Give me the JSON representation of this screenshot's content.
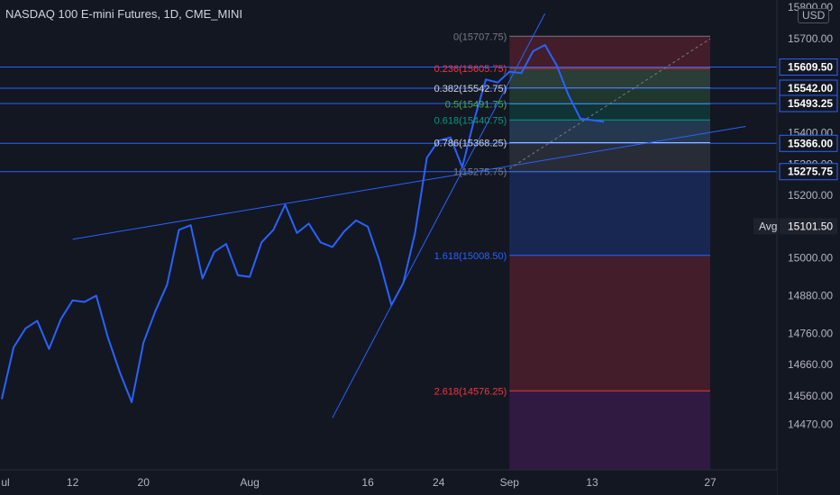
{
  "header": {
    "title": "NASDAQ 100 E-mini Futures, 1D, CME_MINI",
    "currency": "USD"
  },
  "chart_data": {
    "type": "line",
    "title": "NASDAQ 100 E-mini Futures, 1D, CME_MINI",
    "ylim": [
      14420,
      15800
    ],
    "y_ticks": [
      "15800.00",
      "15700.00",
      "15400.00",
      "15300.00",
      "15200.00",
      "15000.00",
      "14880.00",
      "14760.00",
      "14660.00",
      "14560.00",
      "14470.00"
    ],
    "x_ticks": [
      {
        "label": "ul",
        "i": 0
      },
      {
        "label": "12",
        "i": 6
      },
      {
        "label": "20",
        "i": 12
      },
      {
        "label": "Aug",
        "i": 21
      },
      {
        "label": "16",
        "i": 31
      },
      {
        "label": "24",
        "i": 37
      },
      {
        "label": "Sep",
        "i": 43
      },
      {
        "label": "13",
        "i": 50
      },
      {
        "label": "27",
        "i": 60
      }
    ],
    "x_range": [
      0,
      62
    ],
    "series": [
      {
        "name": "",
        "color": "#2962ff",
        "points": [
          [
            0,
            14550
          ],
          [
            1,
            14715
          ],
          [
            2,
            14775
          ],
          [
            3,
            14800
          ],
          [
            4,
            14710
          ],
          [
            5,
            14805
          ],
          [
            6,
            14865
          ],
          [
            7,
            14860
          ],
          [
            8,
            14880
          ],
          [
            9,
            14745
          ],
          [
            10,
            14635
          ],
          [
            11,
            14540
          ],
          [
            12,
            14730
          ],
          [
            13,
            14830
          ],
          [
            14,
            14915
          ],
          [
            15,
            15090
          ],
          [
            16,
            15105
          ],
          [
            17,
            14935
          ],
          [
            18,
            15020
          ],
          [
            19,
            15045
          ],
          [
            20,
            14945
          ],
          [
            21,
            14940
          ],
          [
            22,
            15050
          ],
          [
            23,
            15090
          ],
          [
            24,
            15170
          ],
          [
            25,
            15080
          ],
          [
            26,
            15110
          ],
          [
            27,
            15050
          ],
          [
            28,
            15035
          ],
          [
            29,
            15085
          ],
          [
            30,
            15120
          ],
          [
            31,
            15100
          ],
          [
            32,
            14990
          ],
          [
            33,
            14850
          ],
          [
            34,
            14920
          ],
          [
            35,
            15080
          ],
          [
            36,
            15320
          ],
          [
            37,
            15375
          ],
          [
            38,
            15385
          ],
          [
            39,
            15290
          ],
          [
            40,
            15440
          ],
          [
            41,
            15570
          ],
          [
            42,
            15560
          ],
          [
            43,
            15595
          ],
          [
            44,
            15590
          ],
          [
            45,
            15660
          ],
          [
            46,
            15680
          ],
          [
            47,
            15615
          ],
          [
            48,
            15520
          ],
          [
            49,
            15445
          ],
          [
            50,
            15440
          ],
          [
            51,
            15435
          ]
        ]
      }
    ],
    "trend_lines": [
      {
        "from": [
          6,
          15060
        ],
        "to": [
          63,
          15420
        ]
      },
      {
        "from": [
          28,
          14490
        ],
        "to": [
          46,
          15780
        ]
      },
      {
        "from": [
          43,
          15285
        ],
        "to": [
          60,
          15700
        ],
        "dashed": true
      }
    ],
    "horizontal_lines": [
      {
        "value": 15609.5,
        "label": "15609.50"
      },
      {
        "value": 15542.0,
        "label": "15542.00"
      },
      {
        "value": 15493.25,
        "label": "15493.25"
      },
      {
        "value": 15366.0,
        "label": "15366.00"
      },
      {
        "value": 15275.75,
        "label": "15275.75"
      }
    ],
    "avg": {
      "label": "Avg",
      "value": 15101.5,
      "value_label": "15101.50"
    },
    "fibonacci": {
      "x_start": 43,
      "x_end": 60,
      "levels": [
        {
          "label": "0(15707.75)",
          "value": 15707.75,
          "color": "#787b86"
        },
        {
          "label": "0.236(15605.75)",
          "value": 15605.75,
          "color": "#f23645"
        },
        {
          "label": "0.382(15542.75)",
          "value": 15542.75,
          "color": "#d1d4dc"
        },
        {
          "label": "0.5(15491.75)",
          "value": 15491.75,
          "color": "#4caf50"
        },
        {
          "label": "0.618(15440.75)",
          "value": 15440.75,
          "color": "#089981"
        },
        {
          "label": "0.786(15368.25)",
          "value": 15368.25,
          "color": "#d1d4dc"
        },
        {
          "label": "1(15275.75)",
          "value": 15275.75,
          "color": "#787b86"
        },
        {
          "label": "1.618(15008.50)",
          "value": 15008.5,
          "color": "#2962ff"
        },
        {
          "label": "2.618(14576.25)",
          "value": 14576.25,
          "color": "#f23645"
        }
      ],
      "zone_colors": [
        "#f23645",
        "#81c784",
        "#4caf50",
        "#089981",
        "#64b5f6",
        "#787b86",
        "#2962ff",
        "#f23645",
        "#9c27b0"
      ]
    }
  }
}
